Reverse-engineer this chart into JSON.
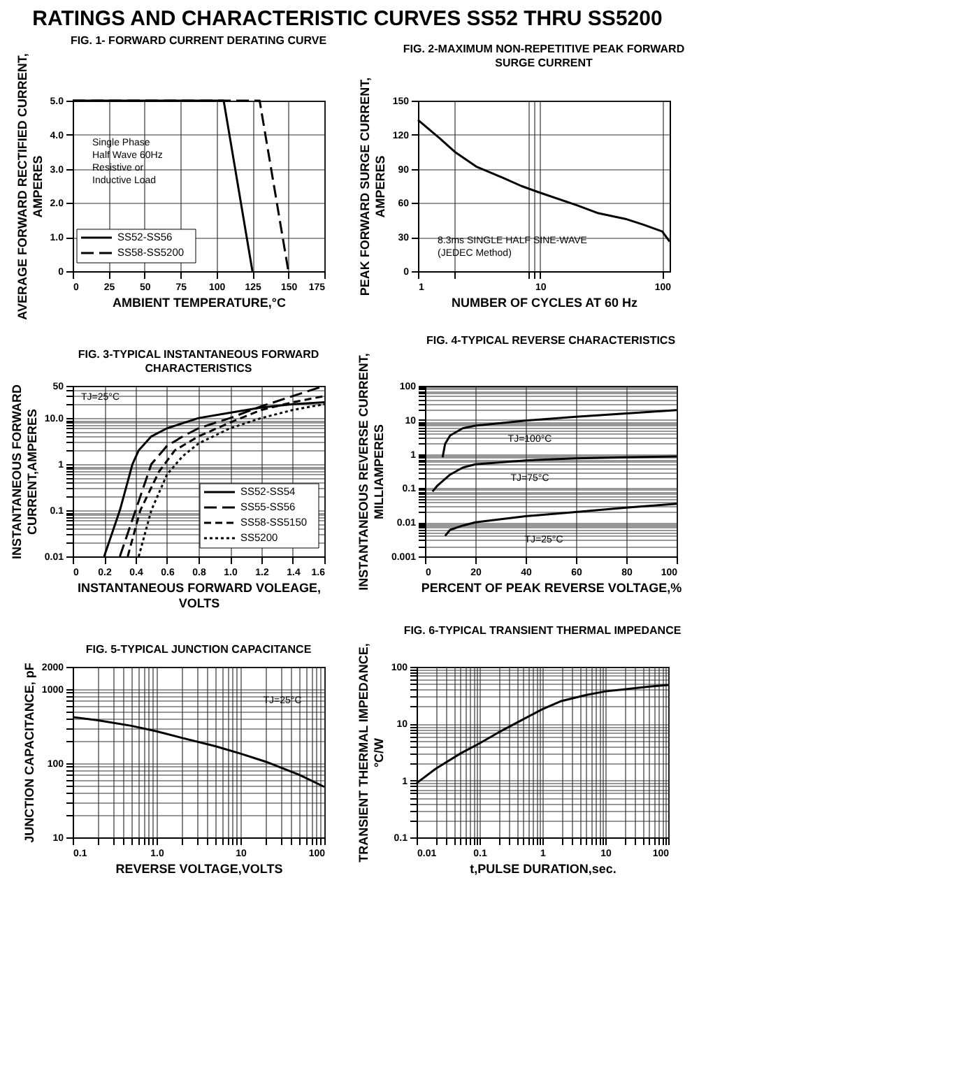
{
  "chart_data": [
    {
      "type": "line",
      "title": "FIG. 1- FORWARD CURRENT DERATING CURVE",
      "xlabel": "AMBIENT TEMPERATURE,°C",
      "ylabel": "AVERAGE FORWARD RECTIFIED CURRENT,\nAMPERES",
      "annotations": [
        "RATINGS AND CHARACTERISTIC CURVES SS52 THRU SS5200",
        "Single Phase\nHalf Wave 60Hz\nResistive or\nInductive Load"
      ],
      "series": [
        {
          "name": "SS52-SS56",
          "color": "#000000",
          "line_style": "solid",
          "x": [
            0,
            105,
            125
          ],
          "values": [
            5,
            5,
            0
          ]
        },
        {
          "name": "SS58-SS5200",
          "color": "#000000",
          "line_style": "dashed",
          "x": [
            0,
            130,
            150
          ],
          "values": [
            5,
            5,
            0
          ]
        }
      ],
      "xlim": [
        0,
        175
      ],
      "xticks": [
        0,
        25,
        50,
        75,
        100,
        125,
        150,
        175
      ],
      "ylim": [
        0,
        5
      ],
      "yticks": [
        0,
        {
          "value": 1,
          "label": "1.0"
        },
        {
          "value": 2,
          "label": "2.0"
        },
        {
          "value": 3,
          "label": "3.0"
        },
        {
          "value": 4,
          "label": "4.0"
        },
        {
          "value": 5,
          "label": "5.0"
        }
      ],
      "grid": true,
      "legend": "bottom left",
      "marker": "none"
    },
    {
      "type": "line",
      "title": "FIG. 2-MAXIMUM NON-REPETITIVE PEAK FORWARD\nSURGE CURRENT",
      "xlabel": "NUMBER OF CYCLES AT 60 Hz",
      "ylabel": "PEAK  FORWARD SURGE CURRENT,\nAMPERES",
      "annotations": [
        "8.3ms SINGLE HALF SINE-WAVE\n(JEDEC Method)"
      ],
      "series": [
        {
          "color": "#000000",
          "line_style": "solid",
          "x": [
            1,
            1.5,
            2,
            3,
            5,
            7,
            10,
            20,
            30,
            50,
            70,
            100,
            115
          ],
          "values": [
            133,
            117,
            105,
            92,
            82,
            75,
            69,
            58,
            51,
            46,
            41,
            35,
            26
          ]
        }
      ],
      "log": "x",
      "xlim": [
        1,
        115
      ],
      "xticks": [
        1,
        {
          "value": 2,
          "label": null
        },
        {
          "value": 8,
          "label": null
        },
        {
          "value": 9,
          "label": null
        },
        10,
        100
      ],
      "ylim": [
        0,
        150
      ],
      "yticks": [
        0,
        30,
        60,
        90,
        120,
        150
      ],
      "grid": true,
      "marker": "none"
    },
    {
      "type": "line",
      "title": "FIG. 3-TYPICAL INSTANTANEOUS FORWARD\nCHARACTERISTICS",
      "xlabel": "INSTANTANEOUS FORWARD VOLEAGE,\nVOLTS",
      "ylabel": "INSTANTANEOUS FORWARD\nCURRENT,AMPERES",
      "annotations": [
        "TJ=25°C"
      ],
      "series": [
        {
          "name": "SS52-SS54",
          "color": "#000000",
          "line_style": "solid",
          "x": [
            0.2,
            0.3,
            0.38,
            0.42,
            0.5,
            0.6,
            0.8,
            1.0,
            1.2,
            1.4,
            1.6
          ],
          "values": [
            0.01,
            0.1,
            1,
            2,
            4,
            6,
            10,
            13,
            17,
            20,
            22
          ]
        },
        {
          "name": "SS55-SS56",
          "color": "#000000",
          "line_style": "dashed",
          "x": [
            0.3,
            0.4,
            0.5,
            0.6,
            0.7,
            0.8,
            1.0,
            1.2,
            1.4,
            1.6
          ],
          "values": [
            0.01,
            0.1,
            1,
            2.5,
            4,
            6,
            10,
            18,
            30,
            50
          ]
        },
        {
          "name": "SS58-SS5150",
          "color": "#000000",
          "line_style": "dashed",
          "x": [
            0.35,
            0.43,
            0.55,
            0.65,
            0.8,
            1.0,
            1.2,
            1.4,
            1.6
          ],
          "values": [
            0.01,
            0.1,
            0.7,
            2,
            4,
            8,
            15,
            22,
            30
          ]
        },
        {
          "name": "SS5200",
          "color": "#000000",
          "line_style": "dotted",
          "x": [
            0.42,
            0.5,
            0.6,
            0.7,
            0.8,
            1.0,
            1.2,
            1.4,
            1.6
          ],
          "values": [
            0.01,
            0.1,
            0.6,
            1.5,
            2.8,
            6,
            10,
            15,
            20
          ]
        }
      ],
      "log": "y",
      "xlim": [
        0,
        1.6
      ],
      "xticks": [
        0,
        0.2,
        0.4,
        0.6,
        0.8,
        {
          "value": 1,
          "label": "1.0"
        },
        1.2,
        1.4,
        1.6
      ],
      "ylim": [
        0.01,
        50
      ],
      "yticks": [
        0.01,
        {
          "value": 0.02,
          "label": null
        },
        {
          "value": 0.03,
          "label": null
        },
        {
          "value": 0.04,
          "label": null
        },
        {
          "value": 0.05,
          "label": null
        },
        {
          "value": 0.06,
          "label": null
        },
        {
          "value": 0.07,
          "label": null
        },
        {
          "value": 0.08,
          "label": null
        },
        {
          "value": 0.09,
          "label": null
        },
        0.1,
        {
          "value": 0.2,
          "label": null
        },
        {
          "value": 0.3,
          "label": null
        },
        {
          "value": 0.4,
          "label": null
        },
        {
          "value": 0.5,
          "label": null
        },
        {
          "value": 0.6,
          "label": null
        },
        {
          "value": 0.7,
          "label": null
        },
        {
          "value": 0.8,
          "label": null
        },
        {
          "value": 0.9,
          "label": null
        },
        1,
        {
          "value": 2,
          "label": null
        },
        {
          "value": 3,
          "label": null
        },
        {
          "value": 4,
          "label": null
        },
        {
          "value": 5,
          "label": null
        },
        {
          "value": 6,
          "label": null
        },
        {
          "value": 7,
          "label": null
        },
        {
          "value": 8,
          "label": null
        },
        {
          "value": 9,
          "label": null
        },
        {
          "value": 10,
          "label": "10.0"
        },
        {
          "value": 20,
          "label": null
        },
        {
          "value": 30,
          "label": null
        },
        {
          "value": 40,
          "label": null
        },
        50
      ],
      "grid": true,
      "legend": "bottom right",
      "marker": "none"
    },
    {
      "type": "line",
      "title": "FIG. 4-TYPICAL REVERSE CHARACTERISTICS",
      "xlabel": "PERCENT OF PEAK REVERSE VOLTAGE,%",
      "ylabel": "INSTANTANEOUS REVERSE CURRENT,\nMILLIAMPERES",
      "annotations": [
        "TJ=100°C",
        "TJ=75°C",
        "TJ=25°C"
      ],
      "series": [
        {
          "color": "#000000",
          "line_style": "solid",
          "x": [
            7,
            8,
            10,
            15,
            20,
            40,
            60,
            80,
            100
          ],
          "values": [
            0.8,
            2,
            3.5,
            5.7,
            6.8,
            9.6,
            12.4,
            15.5,
            19.5
          ]
        },
        {
          "color": "#000000",
          "line_style": "solid",
          "x": [
            3,
            5,
            10,
            15,
            20,
            40,
            60,
            80,
            100
          ],
          "values": [
            0.08,
            0.12,
            0.25,
            0.4,
            0.5,
            0.65,
            0.75,
            0.8,
            0.85
          ]
        },
        {
          "color": "#000000",
          "line_style": "solid",
          "x": [
            8,
            10,
            15,
            20,
            40,
            60,
            80,
            100
          ],
          "values": [
            0.004,
            0.006,
            0.008,
            0.01,
            0.015,
            0.02,
            0.027,
            0.035
          ]
        }
      ],
      "log": "y",
      "xlim": [
        0,
        100
      ],
      "xticks": [
        0,
        20,
        40,
        60,
        80,
        100
      ],
      "ylim": [
        0.001,
        100
      ],
      "yticks": [
        0.001,
        {
          "value": 0.002,
          "label": null
        },
        {
          "value": 0.003,
          "label": null
        },
        {
          "value": 0.004,
          "label": null
        },
        {
          "value": 0.005,
          "label": null
        },
        {
          "value": 0.006,
          "label": null
        },
        {
          "value": 0.007,
          "label": null
        },
        {
          "value": 0.008,
          "label": null
        },
        {
          "value": 0.009,
          "label": null
        },
        0.01,
        {
          "value": 0.02,
          "label": null
        },
        {
          "value": 0.03,
          "label": null
        },
        {
          "value": 0.04,
          "label": null
        },
        {
          "value": 0.05,
          "label": null
        },
        {
          "value": 0.06,
          "label": null
        },
        {
          "value": 0.07,
          "label": null
        },
        {
          "value": 0.08,
          "label": null
        },
        {
          "value": 0.09,
          "label": null
        },
        0.1,
        {
          "value": 0.2,
          "label": null
        },
        {
          "value": 0.3,
          "label": null
        },
        {
          "value": 0.4,
          "label": null
        },
        {
          "value": 0.5,
          "label": null
        },
        {
          "value": 0.6,
          "label": null
        },
        {
          "value": 0.7,
          "label": null
        },
        {
          "value": 0.8,
          "label": null
        },
        {
          "value": 0.9,
          "label": null
        },
        1,
        {
          "value": 2,
          "label": null
        },
        {
          "value": 3,
          "label": null
        },
        {
          "value": 4,
          "label": null
        },
        {
          "value": 5,
          "label": null
        },
        {
          "value": 6,
          "label": null
        },
        {
          "value": 7,
          "label": null
        },
        {
          "value": 8,
          "label": null
        },
        {
          "value": 9,
          "label": null
        },
        10,
        {
          "value": 20,
          "label": null
        },
        {
          "value": 30,
          "label": null
        },
        {
          "value": 40,
          "label": null
        },
        {
          "value": 50,
          "label": null
        },
        {
          "value": 60,
          "label": null
        },
        {
          "value": 70,
          "label": null
        },
        {
          "value": 80,
          "label": null
        },
        {
          "value": 90,
          "label": null
        },
        100
      ],
      "grid": true,
      "marker": "none"
    },
    {
      "type": "line",
      "title": "FIG. 5-TYPICAL JUNCTION CAPACITANCE",
      "xlabel": "REVERSE VOLTAGE,VOLTS",
      "ylabel": "JUNCTION CAPACITANCE, pF",
      "annotations": [
        "TJ=25°C"
      ],
      "series": [
        {
          "color": "#000000",
          "line_style": "solid",
          "x": [
            0.1,
            0.2,
            0.5,
            1,
            2,
            5,
            10,
            20,
            50,
            100
          ],
          "values": [
            420,
            380,
            320,
            270,
            220,
            170,
            135,
            105,
            70,
            48
          ]
        }
      ],
      "log": "xy",
      "xlim": [
        0.1,
        100
      ],
      "xticks": [
        0.1,
        {
          "value": 0.2,
          "label": null
        },
        {
          "value": 0.3,
          "label": null
        },
        {
          "value": 0.4,
          "label": null
        },
        {
          "value": 0.5,
          "label": null
        },
        {
          "value": 0.6,
          "label": null
        },
        {
          "value": 0.7,
          "label": null
        },
        {
          "value": 0.8,
          "label": null
        },
        {
          "value": 0.9,
          "label": null
        },
        {
          "value": 1,
          "label": "1.0"
        },
        {
          "value": 2,
          "label": null
        },
        {
          "value": 3,
          "label": null
        },
        {
          "value": 4,
          "label": null
        },
        {
          "value": 5,
          "label": null
        },
        {
          "value": 6,
          "label": null
        },
        {
          "value": 7,
          "label": null
        },
        {
          "value": 8,
          "label": null
        },
        {
          "value": 9,
          "label": null
        },
        10,
        {
          "value": 20,
          "label": null
        },
        {
          "value": 30,
          "label": null
        },
        {
          "value": 40,
          "label": null
        },
        {
          "value": 50,
          "label": null
        },
        {
          "value": 60,
          "label": null
        },
        {
          "value": 70,
          "label": null
        },
        {
          "value": 80,
          "label": null
        },
        {
          "value": 90,
          "label": null
        },
        100
      ],
      "ylim": [
        10,
        2000
      ],
      "yticks": [
        10,
        {
          "value": 20,
          "label": null
        },
        {
          "value": 30,
          "label": null
        },
        {
          "value": 40,
          "label": null
        },
        {
          "value": 50,
          "label": null
        },
        {
          "value": 60,
          "label": null
        },
        {
          "value": 70,
          "label": null
        },
        {
          "value": 80,
          "label": null
        },
        {
          "value": 90,
          "label": null
        },
        100,
        {
          "value": 200,
          "label": null
        },
        {
          "value": 300,
          "label": null
        },
        {
          "value": 400,
          "label": null
        },
        {
          "value": 500,
          "label": null
        },
        {
          "value": 600,
          "label": null
        },
        {
          "value": 700,
          "label": null
        },
        {
          "value": 800,
          "label": null
        },
        {
          "value": 900,
          "label": null
        },
        1000,
        2000
      ],
      "grid": true,
      "marker": "none"
    },
    {
      "type": "line",
      "title": "FIG. 6-TYPICAL TRANSIENT THERMAL IMPEDANCE",
      "xlabel": "t,PULSE DURATION,sec.",
      "ylabel": "TRANSIENT THERMAL IMPEDANCE,\n°C/W",
      "series": [
        {
          "color": "#000000",
          "line_style": "solid",
          "x": [
            0.01,
            0.02,
            0.05,
            0.1,
            0.2,
            0.5,
            1,
            2,
            5,
            10,
            20,
            50,
            100
          ],
          "values": [
            0.9,
            1.6,
            3,
            4.5,
            7,
            12,
            18,
            25,
            32,
            37,
            40,
            45,
            48
          ]
        }
      ],
      "log": "xy",
      "xlim": [
        0.01,
        100
      ],
      "xticks": [
        0.01,
        {
          "value": 0.02,
          "label": null
        },
        {
          "value": 0.03,
          "label": null
        },
        {
          "value": 0.04,
          "label": null
        },
        {
          "value": 0.05,
          "label": null
        },
        {
          "value": 0.06,
          "label": null
        },
        {
          "value": 0.07,
          "label": null
        },
        {
          "value": 0.08,
          "label": null
        },
        {
          "value": 0.09,
          "label": null
        },
        0.1,
        {
          "value": 0.2,
          "label": null
        },
        {
          "value": 0.3,
          "label": null
        },
        {
          "value": 0.4,
          "label": null
        },
        {
          "value": 0.5,
          "label": null
        },
        {
          "value": 0.6,
          "label": null
        },
        {
          "value": 0.7,
          "label": null
        },
        {
          "value": 0.8,
          "label": null
        },
        {
          "value": 0.9,
          "label": null
        },
        1,
        {
          "value": 2,
          "label": null
        },
        {
          "value": 3,
          "label": null
        },
        {
          "value": 4,
          "label": null
        },
        {
          "value": 5,
          "label": null
        },
        {
          "value": 6,
          "label": null
        },
        {
          "value": 7,
          "label": null
        },
        {
          "value": 8,
          "label": null
        },
        {
          "value": 9,
          "label": null
        },
        10,
        {
          "value": 20,
          "label": null
        },
        {
          "value": 30,
          "label": null
        },
        {
          "value": 40,
          "label": null
        },
        {
          "value": 50,
          "label": null
        },
        {
          "value": 60,
          "label": null
        },
        {
          "value": 70,
          "label": null
        },
        {
          "value": 80,
          "label": null
        },
        {
          "value": 90,
          "label": null
        },
        100
      ],
      "ylim": [
        0.1,
        100
      ],
      "yticks": [
        0.1,
        {
          "value": 0.2,
          "label": null
        },
        {
          "value": 0.3,
          "label": null
        },
        {
          "value": 0.4,
          "label": null
        },
        {
          "value": 0.5,
          "label": null
        },
        {
          "value": 0.6,
          "label": null
        },
        {
          "value": 0.7,
          "label": null
        },
        {
          "value": 0.8,
          "label": null
        },
        {
          "value": 0.9,
          "label": null
        },
        1,
        {
          "value": 2,
          "label": null
        },
        {
          "value": 3,
          "label": null
        },
        {
          "value": 4,
          "label": null
        },
        {
          "value": 5,
          "label": null
        },
        {
          "value": 6,
          "label": null
        },
        {
          "value": 7,
          "label": null
        },
        {
          "value": 8,
          "label": null
        },
        {
          "value": 9,
          "label": null
        },
        10,
        {
          "value": 20,
          "label": null
        },
        {
          "value": 30,
          "label": null
        },
        {
          "value": 40,
          "label": null
        },
        {
          "value": 50,
          "label": null
        },
        {
          "value": 60,
          "label": null
        },
        {
          "value": 70,
          "label": null
        },
        {
          "value": 80,
          "label": null
        },
        {
          "value": 90,
          "label": null
        },
        100
      ],
      "grid": true,
      "marker": "none"
    }
  ]
}
